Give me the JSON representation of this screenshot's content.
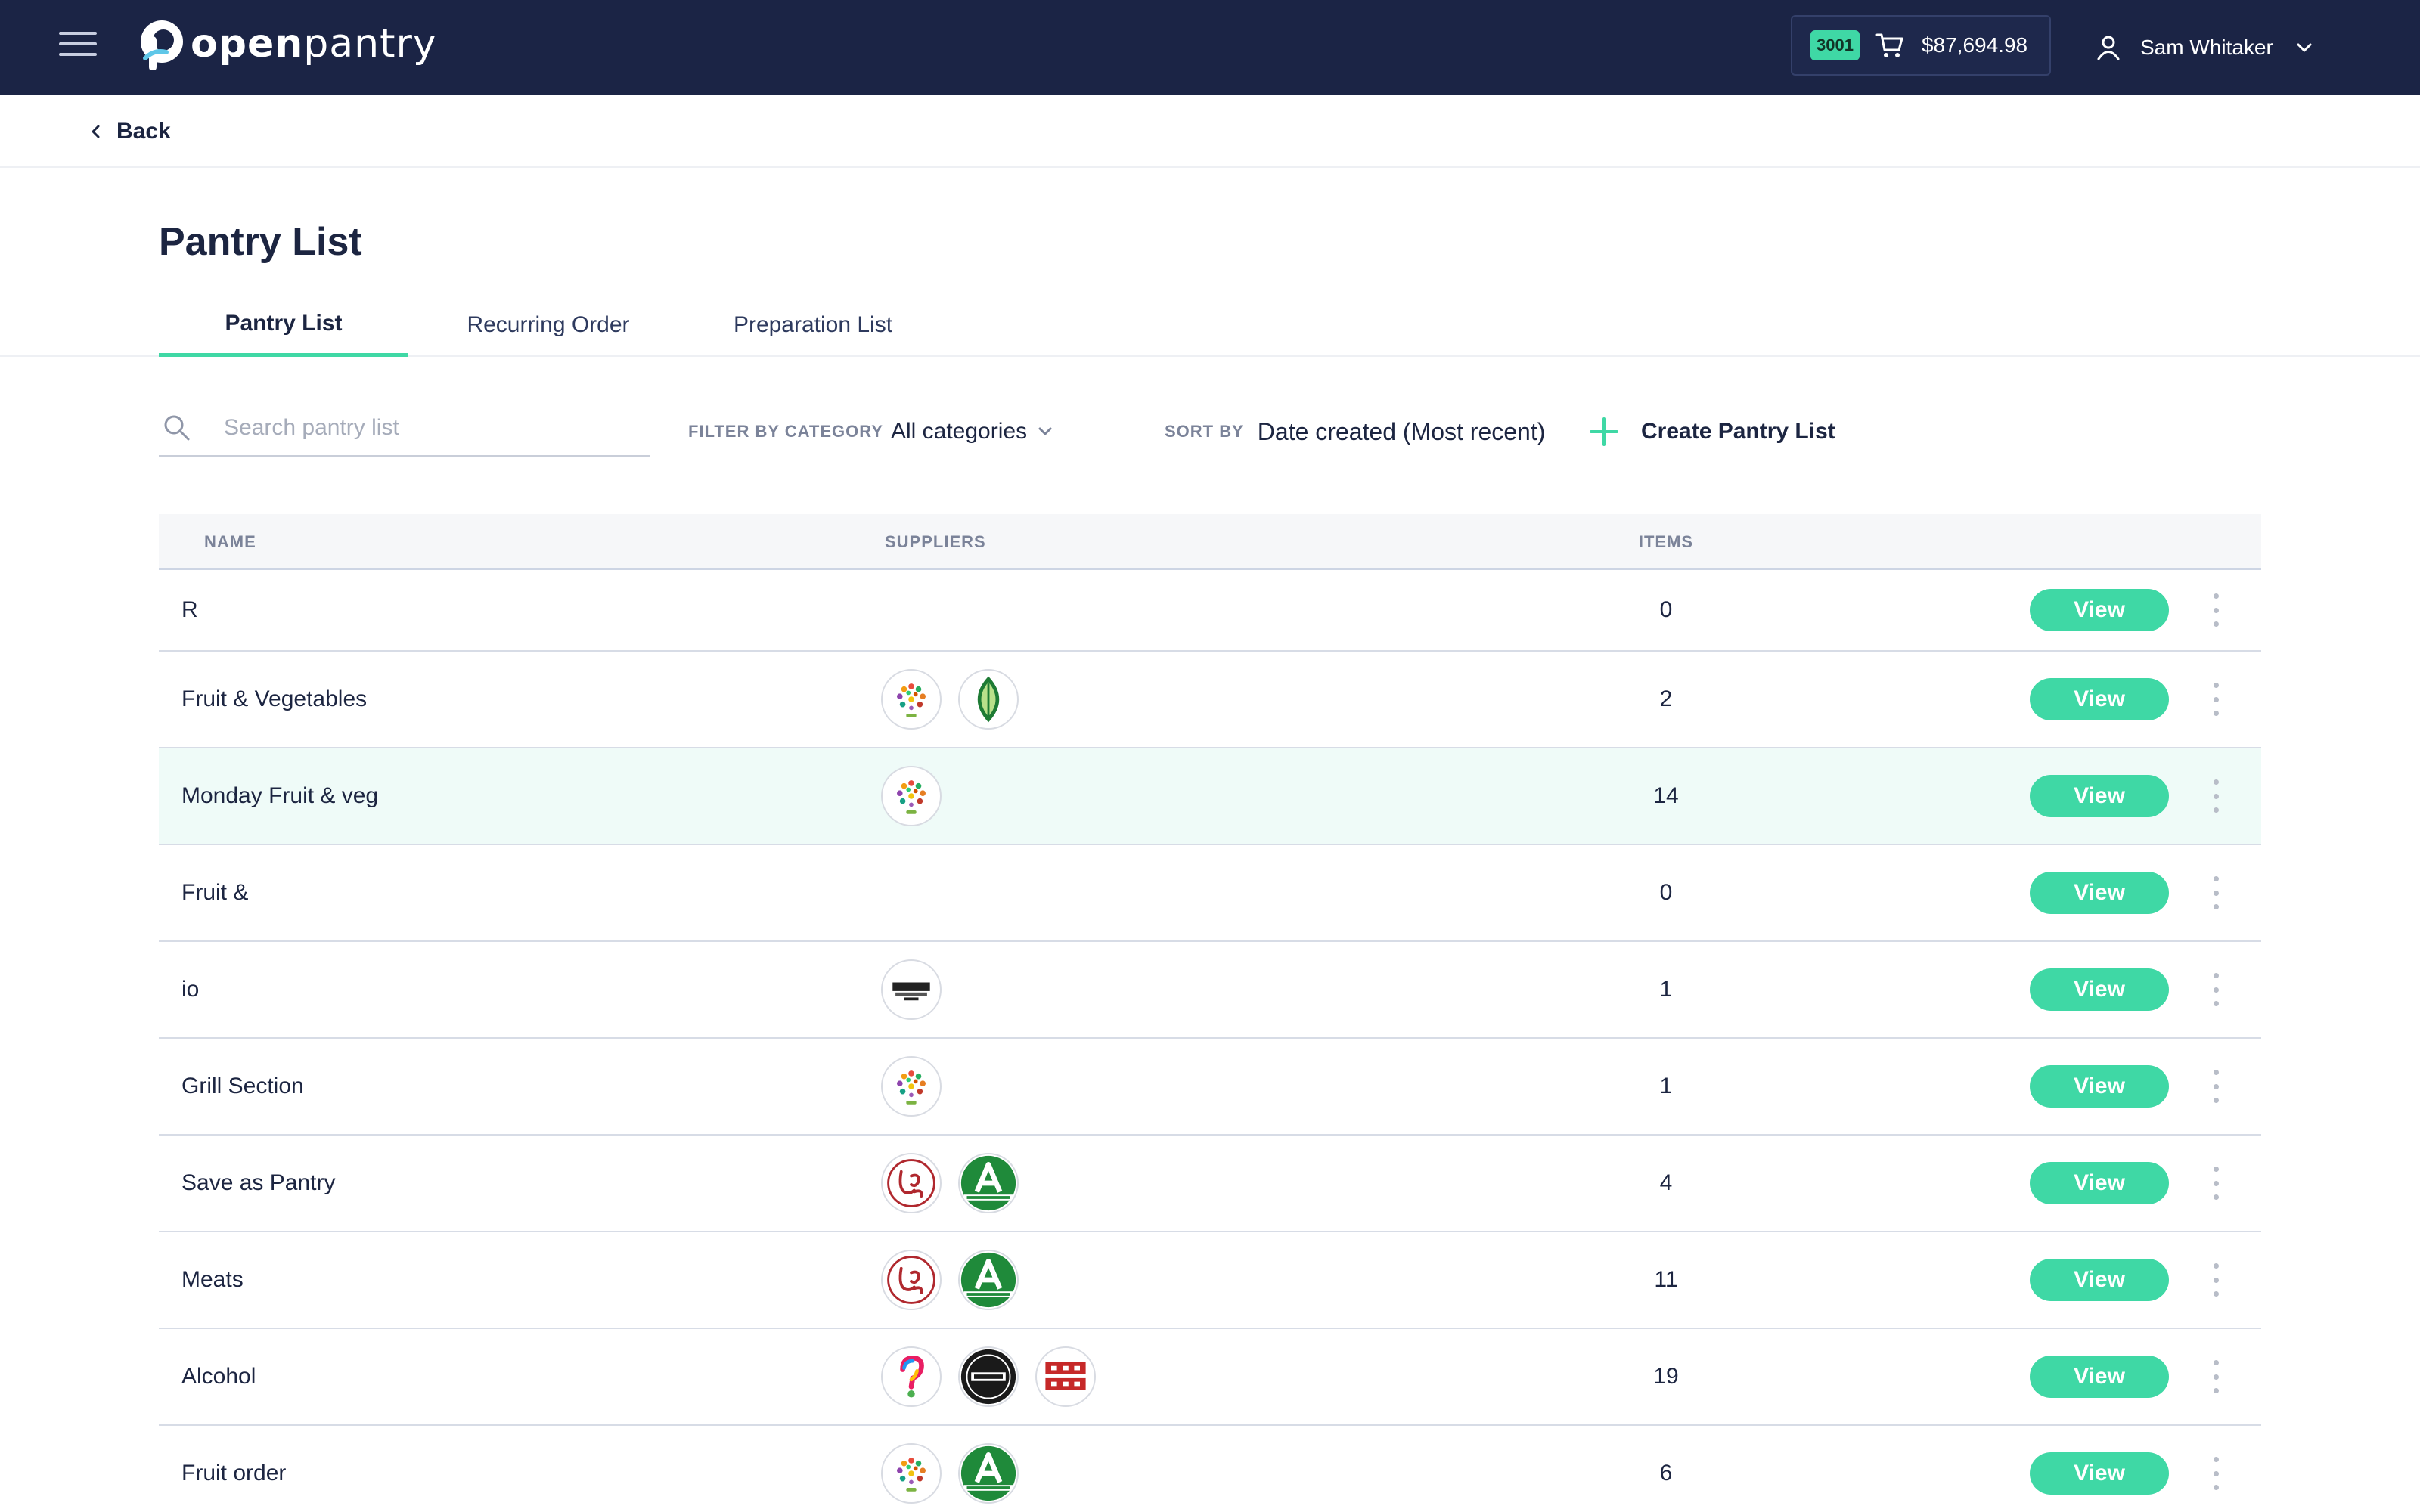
{
  "header": {
    "brand_bold": "open",
    "brand_light": "pantry",
    "cart_badge": "3001",
    "cart_total": "$87,694.98",
    "user_name": "Sam Whitaker",
    "colors": {
      "topbar": "#1b2445",
      "accent": "#3fd8a5"
    }
  },
  "back_label": "Back",
  "page_title": "Pantry List",
  "tabs": [
    {
      "label": "Pantry List",
      "active": true
    },
    {
      "label": "Recurring Order",
      "active": false
    },
    {
      "label": "Preparation List",
      "active": false
    }
  ],
  "toolbar": {
    "search_placeholder": "Search pantry list",
    "search_value": "",
    "filter_label": "FILTER BY CATEGORY",
    "filter_value": "All categories",
    "sort_label": "SORT BY",
    "sort_value": "Date created (Most recent)",
    "create_label": "Create Pantry List"
  },
  "table": {
    "columns": [
      "NAME",
      "SUPPLIERS",
      "ITEMS"
    ],
    "view_label": "View",
    "rows": [
      {
        "name": "R",
        "suppliers": [],
        "items": "0"
      },
      {
        "name": "Fruit & Vegetables",
        "suppliers": [
          "fruit-logo",
          "leaf-logo"
        ],
        "items": "2"
      },
      {
        "name": "Monday Fruit & veg",
        "suppliers": [
          "fruit-logo"
        ],
        "items": "14",
        "highlighted": true
      },
      {
        "name": "Fruit &",
        "suppliers": [],
        "items": "0"
      },
      {
        "name": "io",
        "suppliers": [
          "baked-logo"
        ],
        "items": "1"
      },
      {
        "name": "Grill Section",
        "suppliers": [
          "fruit-logo"
        ],
        "items": "1"
      },
      {
        "name": "Save as Pantry",
        "suppliers": [
          "lps-logo",
          "a-foods-logo"
        ],
        "items": "4"
      },
      {
        "name": "Meats",
        "suppliers": [
          "lps-logo",
          "a-foods-logo"
        ],
        "items": "11"
      },
      {
        "name": "Alcohol",
        "suppliers": [
          "question-logo",
          "beer-cartel-logo",
          "not-sydney-logo"
        ],
        "items": "19"
      },
      {
        "name": "Fruit order",
        "suppliers": [
          "fruit-logo",
          "a-foods-logo"
        ],
        "items": "6"
      }
    ]
  }
}
